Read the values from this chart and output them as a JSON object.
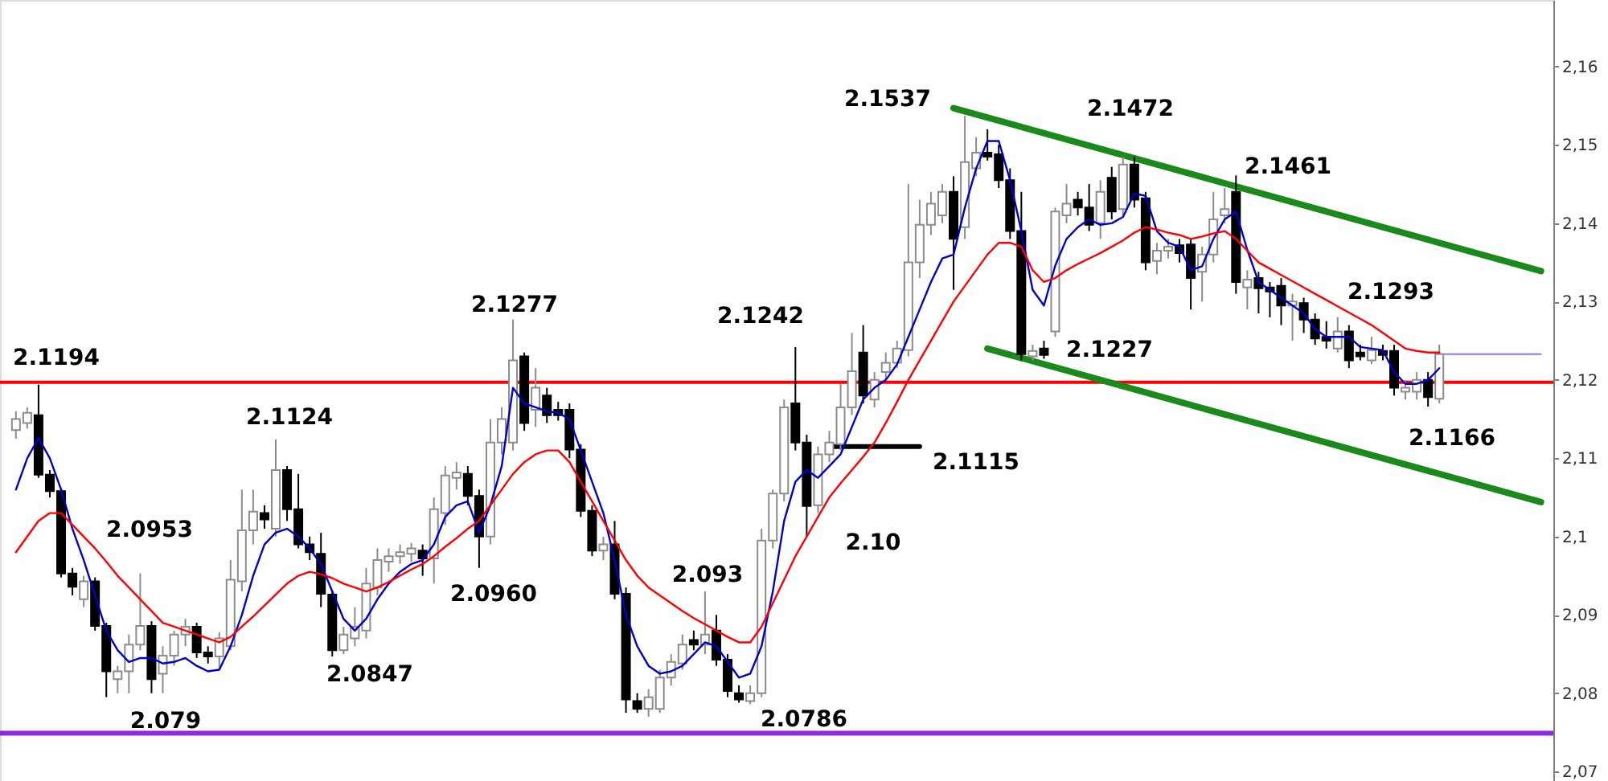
{
  "chart_data": {
    "type": "candlestick",
    "categories": [
      null,
      null,
      null,
      null,
      null,
      null,
      null,
      null,
      null,
      null,
      null,
      null,
      null,
      null,
      null,
      null,
      null,
      null,
      null,
      null,
      null,
      null,
      null,
      null,
      null,
      null,
      null,
      null,
      null,
      null,
      null,
      null,
      null,
      null,
      null,
      null,
      null,
      null,
      null,
      null,
      null,
      null,
      null,
      null,
      null,
      null,
      null,
      null,
      null,
      null,
      null,
      null,
      null,
      null,
      null,
      null,
      null,
      null,
      null,
      null,
      null,
      null,
      null,
      null,
      null,
      null,
      null,
      null,
      null,
      null,
      null,
      null,
      null,
      null,
      null,
      null,
      null,
      null,
      null,
      null,
      null,
      null,
      null,
      null,
      null,
      null,
      null,
      null,
      null,
      null,
      null,
      null,
      null,
      null,
      null,
      null,
      null,
      null,
      null,
      null,
      null,
      null,
      null,
      null,
      null,
      null,
      null,
      null,
      null,
      null,
      null,
      null,
      null,
      null,
      null,
      null,
      null,
      null,
      null,
      null,
      null,
      null,
      null,
      null,
      null,
      null,
      null,
      null,
      null,
      null,
      null,
      null,
      null,
      null,
      null,
      null
    ],
    "ohlc": [
      [
        2.1136,
        2.116,
        2.1125,
        2.115
      ],
      [
        2.1145,
        2.1165,
        2.1138,
        2.1158
      ],
      [
        2.1155,
        2.1194,
        2.1075,
        2.1079
      ],
      [
        2.1079,
        2.1085,
        2.105,
        2.1058
      ],
      [
        2.1058,
        2.1062,
        2.0948,
        2.0953
      ],
      [
        2.0953,
        2.096,
        2.0925,
        2.0936
      ],
      [
        2.092,
        2.095,
        2.091,
        2.0943
      ],
      [
        2.0943,
        2.0948,
        2.088,
        2.0886
      ],
      [
        2.0886,
        2.089,
        2.0795,
        2.0828
      ],
      [
        2.0818,
        2.0835,
        2.08,
        2.0828
      ],
      [
        2.0828,
        2.0875,
        2.08,
        2.0862
      ],
      [
        2.0862,
        2.0953,
        2.0855,
        2.0886
      ],
      [
        2.0886,
        2.0892,
        2.08,
        2.0818
      ],
      [
        2.0825,
        2.086,
        2.08,
        2.0848
      ],
      [
        2.0848,
        2.088,
        2.0835,
        2.0875
      ],
      [
        2.0875,
        2.0895,
        2.086,
        2.0885
      ],
      [
        2.0885,
        2.089,
        2.0845,
        2.0852
      ],
      [
        2.0852,
        2.086,
        2.0838,
        2.0847
      ],
      [
        2.0847,
        2.0878,
        2.083,
        2.087
      ],
      [
        2.086,
        2.097,
        2.0855,
        2.0945
      ],
      [
        2.0943,
        2.106,
        2.093,
        2.1008
      ],
      [
        2.1008,
        2.106,
        2.099,
        2.1032
      ],
      [
        2.103,
        2.104,
        2.101,
        2.1022
      ],
      [
        2.101,
        2.1124,
        2.1,
        2.1085
      ],
      [
        2.1085,
        2.109,
        2.102,
        2.1035
      ],
      [
        2.1035,
        2.108,
        2.0985,
        2.099
      ],
      [
        2.099,
        2.1,
        2.097,
        2.098
      ],
      [
        2.0978,
        2.1005,
        2.091,
        2.0927
      ],
      [
        2.0926,
        2.093,
        2.0847,
        2.0855
      ],
      [
        2.0855,
        2.0885,
        2.085,
        2.0875
      ],
      [
        2.087,
        2.091,
        2.086,
        2.0885
      ],
      [
        2.088,
        2.096,
        2.087,
        2.094
      ],
      [
        2.0935,
        2.0985,
        2.0925,
        2.097
      ],
      [
        2.0968,
        2.0985,
        2.0955,
        2.0975
      ],
      [
        2.0975,
        2.099,
        2.0965,
        2.098
      ],
      [
        2.0978,
        2.0992,
        2.0968,
        2.0985
      ],
      [
        2.0982,
        2.099,
        2.095,
        2.0972
      ],
      [
        2.0972,
        2.105,
        2.094,
        2.1035
      ],
      [
        2.103,
        2.109,
        2.1015,
        2.1078
      ],
      [
        2.1075,
        2.1095,
        2.106,
        2.1082
      ],
      [
        2.108,
        2.109,
        2.104,
        2.1052
      ],
      [
        2.1052,
        2.106,
        2.096,
        2.1
      ],
      [
        2.1,
        2.115,
        2.099,
        2.112
      ],
      [
        2.112,
        2.1165,
        2.1105,
        2.115
      ],
      [
        2.112,
        2.1277,
        2.111,
        2.1225
      ],
      [
        2.123,
        2.1235,
        2.1135,
        2.1145
      ],
      [
        2.1162,
        2.1215,
        2.114,
        2.119
      ],
      [
        2.118,
        2.119,
        2.1145,
        2.1155
      ],
      [
        2.1162,
        2.1172,
        2.1148,
        2.1155
      ],
      [
        2.1162,
        2.117,
        2.11,
        2.1111
      ],
      [
        2.1111,
        2.1118,
        2.1025,
        2.1033
      ],
      [
        2.1033,
        2.104,
        2.0975,
        2.0982
      ],
      [
        2.0982,
        2.1,
        2.097,
        2.099
      ],
      [
        2.099,
        2.102,
        2.092,
        2.0927
      ],
      [
        2.0927,
        2.0935,
        2.0775,
        2.0792
      ],
      [
        2.079,
        2.08,
        2.0775,
        2.078
      ],
      [
        2.078,
        2.0805,
        2.077,
        2.0795
      ],
      [
        2.078,
        2.083,
        2.0775,
        2.082
      ],
      [
        2.082,
        2.085,
        2.081,
        2.084
      ],
      [
        2.0838,
        2.0875,
        2.083,
        2.0862
      ],
      [
        2.0868,
        2.088,
        2.0855,
        2.0862
      ],
      [
        2.0862,
        2.093,
        2.085,
        2.0875
      ],
      [
        2.088,
        2.09,
        2.0835,
        2.0843
      ],
      [
        2.0843,
        2.085,
        2.0795,
        2.0803
      ],
      [
        2.08,
        2.081,
        2.0788,
        2.0792
      ],
      [
        2.079,
        2.081,
        2.0786,
        2.08
      ],
      [
        2.08,
        2.101,
        2.0795,
        2.0995
      ],
      [
        2.0995,
        2.106,
        2.0985,
        2.1055
      ],
      [
        2.1055,
        2.1175,
        2.1045,
        2.1165
      ],
      [
        2.117,
        2.1242,
        2.111,
        2.112
      ],
      [
        2.112,
        2.113,
        2.1,
        2.1039
      ],
      [
        2.104,
        2.1115,
        2.103,
        2.1105
      ],
      [
        2.1105,
        2.1135,
        2.1095,
        2.112
      ],
      [
        2.1118,
        2.1195,
        2.111,
        2.1165
      ],
      [
        2.1165,
        2.126,
        2.1155,
        2.1211
      ],
      [
        2.1235,
        2.127,
        2.117,
        2.118
      ],
      [
        2.1175,
        2.121,
        2.1165,
        2.12
      ],
      [
        2.121,
        2.1235,
        2.12,
        2.1222
      ],
      [
        2.1222,
        2.125,
        2.1215,
        2.124
      ],
      [
        2.1238,
        2.145,
        2.123,
        2.135
      ],
      [
        2.135,
        2.143,
        2.133,
        2.1398
      ],
      [
        2.1398,
        2.144,
        2.1385,
        2.1425
      ],
      [
        2.141,
        2.145,
        2.14,
        2.144
      ],
      [
        2.144,
        2.146,
        2.1315,
        2.138
      ],
      [
        2.1395,
        2.1537,
        2.138,
        2.1478
      ],
      [
        2.147,
        2.151,
        2.146,
        2.149
      ],
      [
        2.149,
        2.152,
        2.148,
        2.1485
      ],
      [
        2.1488,
        2.15,
        2.1445,
        2.1455
      ],
      [
        2.1455,
        2.147,
        2.138,
        2.139
      ],
      [
        2.139,
        2.144,
        2.1225,
        2.1233
      ],
      [
        2.123,
        2.1245,
        2.1225,
        2.1237
      ],
      [
        2.124,
        2.125,
        2.1227,
        2.1232
      ],
      [
        2.1262,
        2.142,
        2.1255,
        2.1415
      ],
      [
        2.141,
        2.145,
        2.14,
        2.1425
      ],
      [
        2.143,
        2.144,
        2.141,
        2.142
      ],
      [
        2.142,
        2.145,
        2.139,
        2.1398
      ],
      [
        2.14,
        2.1455,
        2.138,
        2.144
      ],
      [
        2.1458,
        2.1472,
        2.1405,
        2.1415
      ],
      [
        2.1418,
        2.1485,
        2.141,
        2.1475
      ],
      [
        2.1475,
        2.1485,
        2.142,
        2.143
      ],
      [
        2.1432,
        2.144,
        2.134,
        2.135
      ],
      [
        2.1352,
        2.1375,
        2.1335,
        2.1365
      ],
      [
        2.1365,
        2.138,
        2.1355,
        2.137
      ],
      [
        2.1372,
        2.138,
        2.135,
        2.1362
      ],
      [
        2.1373,
        2.138,
        2.129,
        2.133
      ],
      [
        2.1338,
        2.137,
        2.13,
        2.136
      ],
      [
        2.136,
        2.144,
        2.135,
        2.1405
      ],
      [
        2.141,
        2.1445,
        2.14,
        2.1418
      ],
      [
        2.144,
        2.1461,
        2.131,
        2.1325
      ],
      [
        2.1318,
        2.134,
        2.129,
        2.1328
      ],
      [
        2.133,
        2.1338,
        2.1285,
        2.1317
      ],
      [
        2.1318,
        2.1325,
        2.128,
        2.1313
      ],
      [
        2.132,
        2.133,
        2.127,
        2.1295
      ],
      [
        2.1295,
        2.131,
        2.125,
        2.13
      ],
      [
        2.1298,
        2.1305,
        2.126,
        2.1277
      ],
      [
        2.1277,
        2.1285,
        2.1245,
        2.1253
      ],
      [
        2.1255,
        2.1275,
        2.124,
        2.125
      ],
      [
        2.124,
        2.128,
        2.1235,
        2.1262
      ],
      [
        2.1262,
        2.127,
        2.1215,
        2.1225
      ],
      [
        2.1235,
        2.1245,
        2.1225,
        2.123
      ],
      [
        2.1225,
        2.1255,
        2.122,
        2.1238
      ],
      [
        2.1237,
        2.1245,
        2.1225,
        2.1232
      ],
      [
        2.1237,
        2.1245,
        2.118,
        2.119
      ],
      [
        2.1185,
        2.12,
        2.1175,
        2.119
      ],
      [
        2.1185,
        2.121,
        2.1175,
        2.12
      ],
      [
        2.12,
        2.121,
        2.1166,
        2.1178
      ],
      [
        2.1176,
        2.1245,
        2.117,
        2.1233
      ],
      null,
      null,
      null,
      null,
      null,
      null,
      null,
      null,
      null
    ],
    "series": [
      {
        "type": "line",
        "color": "#0000cc",
        "values": [
          2.106,
          2.11,
          2.1126,
          2.11,
          2.106,
          2.101,
          2.097,
          2.0925,
          2.088,
          2.0855,
          2.084,
          2.0845,
          2.0845,
          2.0838,
          2.084,
          2.0845,
          2.0835,
          2.0828,
          2.083,
          2.086,
          2.09,
          2.095,
          2.099,
          2.1005,
          2.101,
          2.1,
          2.0985,
          2.0965,
          2.093,
          2.0895,
          2.088,
          2.0895,
          2.092,
          2.094,
          2.0955,
          2.0965,
          2.097,
          2.099,
          2.1025,
          2.104,
          2.1045,
          2.1005,
          2.104,
          2.109,
          2.119,
          2.117,
          2.1165,
          2.116,
          2.1158,
          2.115,
          2.111,
          2.107,
          2.103,
          2.097,
          2.09,
          2.086,
          2.0835,
          2.0825,
          2.0828,
          2.0835,
          2.085,
          2.0865,
          2.086,
          2.084,
          2.082,
          2.0825,
          2.086,
          2.093,
          2.102,
          2.107,
          2.1085,
          2.1075,
          2.109,
          2.1105,
          2.114,
          2.1175,
          2.119,
          2.12,
          2.122,
          2.1255,
          2.129,
          2.1325,
          2.1355,
          2.136,
          2.142,
          2.147,
          2.1505,
          2.1505,
          2.1455,
          2.139,
          2.1315,
          2.1295,
          2.1346,
          2.138,
          2.1395,
          2.1405,
          2.1398,
          2.14,
          2.1408,
          2.1438,
          2.1435,
          2.139,
          2.1375,
          2.137,
          2.134,
          2.1345,
          2.138,
          2.1405,
          2.1415,
          2.1366,
          2.1325,
          2.1315,
          2.1305,
          2.1295,
          2.1285,
          2.1265,
          2.1255,
          2.1255,
          2.1255,
          2.1242,
          2.124,
          2.1238,
          2.121,
          2.1195,
          2.1195,
          2.12,
          2.1215,
          null,
          null,
          null,
          null,
          null,
          null,
          null,
          null,
          null
        ]
      },
      {
        "type": "line",
        "color": "#ff0000",
        "values": [
          2.098,
          2.1,
          2.102,
          2.103,
          2.103,
          2.1015,
          2.1,
          2.0985,
          2.0968,
          2.095,
          2.0935,
          2.092,
          2.0905,
          2.089,
          2.0885,
          2.088,
          2.0875,
          2.087,
          2.0865,
          2.0872,
          2.0885,
          2.0898,
          2.0912,
          2.0926,
          2.094,
          2.095,
          2.0955,
          2.0952,
          2.0947,
          2.094,
          2.0935,
          2.093,
          2.0935,
          2.0942,
          2.095,
          2.0958,
          2.0965,
          2.0975,
          2.0987,
          2.0998,
          2.101,
          2.102,
          2.104,
          2.106,
          2.108,
          2.1095,
          2.1105,
          2.111,
          2.111,
          2.1095,
          2.107,
          2.1045,
          2.102,
          2.0995,
          2.097,
          2.095,
          2.0935,
          2.0925,
          2.0915,
          2.0905,
          2.0896,
          2.0888,
          2.088,
          2.0872,
          2.0865,
          2.0865,
          2.0885,
          2.0915,
          2.0945,
          2.0975,
          2.1,
          2.1025,
          2.105,
          2.1068,
          2.1085,
          2.1102,
          2.112,
          2.1145,
          2.1172,
          2.12,
          2.1225,
          2.125,
          2.1275,
          2.13,
          2.132,
          2.134,
          2.136,
          2.1375,
          2.1375,
          2.137,
          2.134,
          2.1325,
          2.133,
          2.134,
          2.1348,
          2.1355,
          2.1362,
          2.137,
          2.1378,
          2.1388,
          2.1395,
          2.1392,
          2.1388,
          2.1385,
          2.138,
          2.1383,
          2.1387,
          2.139,
          2.138,
          2.1365,
          2.135,
          2.1342,
          2.1334,
          2.1326,
          2.1318,
          2.131,
          2.1302,
          2.1294,
          2.1286,
          2.1278,
          2.127,
          2.126,
          2.125,
          2.124,
          2.1237,
          2.1235,
          2.1235,
          null,
          null,
          null,
          null,
          null,
          null,
          null,
          null,
          null
        ]
      },
      {
        "type": "line",
        "color": "#1a8a1a",
        "values": [
          null,
          null,
          null,
          null,
          null,
          null,
          null,
          null,
          null,
          null,
          null,
          null,
          null,
          null,
          null,
          null,
          null,
          null,
          null,
          null,
          null,
          null,
          null,
          null,
          null,
          null,
          null,
          null,
          null,
          null,
          null,
          null,
          null,
          null,
          null,
          null,
          null,
          null,
          null,
          null,
          null,
          null,
          null,
          null,
          null,
          null,
          null,
          null,
          null,
          null,
          null,
          null,
          null,
          null,
          null,
          null,
          null,
          null,
          null,
          null,
          null,
          null,
          null,
          null,
          null,
          null,
          null,
          null,
          null,
          null,
          null,
          null,
          null,
          null,
          null,
          null,
          null,
          null,
          null,
          null,
          null,
          null,
          null,
          2.1547,
          null,
          null,
          null,
          null,
          null,
          null,
          null,
          null,
          null,
          null,
          null,
          null,
          null,
          null,
          null,
          null,
          null,
          null,
          null,
          null,
          null,
          null,
          null,
          null,
          null,
          null,
          null,
          null,
          null,
          null,
          null,
          null,
          null,
          null,
          null,
          null,
          null,
          null,
          null,
          null,
          null,
          null,
          null,
          null,
          null,
          null,
          null,
          null,
          null,
          null,
          null,
          2.1339
        ]
      },
      {
        "type": "line",
        "color": "#1a8a1a",
        "values": [
          null,
          null,
          null,
          null,
          null,
          null,
          null,
          null,
          null,
          null,
          null,
          null,
          null,
          null,
          null,
          null,
          null,
          null,
          null,
          null,
          null,
          null,
          null,
          null,
          null,
          null,
          null,
          null,
          null,
          null,
          null,
          null,
          null,
          null,
          null,
          null,
          null,
          null,
          null,
          null,
          null,
          null,
          null,
          null,
          null,
          null,
          null,
          null,
          null,
          null,
          null,
          null,
          null,
          null,
          null,
          null,
          null,
          null,
          null,
          null,
          null,
          null,
          null,
          null,
          null,
          null,
          null,
          null,
          null,
          null,
          null,
          null,
          null,
          null,
          null,
          null,
          null,
          null,
          null,
          null,
          null,
          null,
          null,
          null,
          null,
          null,
          2.124,
          null,
          null,
          null,
          null,
          null,
          null,
          null,
          null,
          null,
          null,
          null,
          null,
          null,
          null,
          null,
          null,
          null,
          null,
          null,
          null,
          null,
          null,
          null,
          null,
          null,
          null,
          null,
          null,
          null,
          null,
          null,
          null,
          null,
          null,
          null,
          null,
          null,
          null,
          null,
          null,
          null,
          null,
          null,
          null,
          null,
          null,
          null,
          null,
          2.1044
        ]
      },
      {
        "type": "line",
        "color": "#000000",
        "values": [
          null,
          null,
          null,
          null,
          null,
          null,
          null,
          null,
          null,
          null,
          null,
          null,
          null,
          null,
          null,
          null,
          null,
          null,
          null,
          null,
          null,
          null,
          null,
          null,
          null,
          null,
          null,
          null,
          null,
          null,
          null,
          null,
          null,
          null,
          null,
          null,
          null,
          null,
          null,
          null,
          null,
          null,
          null,
          null,
          null,
          null,
          null,
          null,
          null,
          null,
          null,
          null,
          null,
          null,
          null,
          null,
          null,
          null,
          null,
          null,
          null,
          null,
          null,
          null,
          null,
          null,
          null,
          null,
          null,
          null,
          null,
          null,
          2.1115,
          null,
          null,
          null,
          null,
          null,
          null,
          null,
          2.1115,
          null,
          null,
          null,
          null,
          null,
          null,
          null,
          null,
          null,
          null,
          null,
          null,
          null,
          null,
          null,
          null,
          null,
          null,
          null,
          null,
          null,
          null,
          null,
          null,
          null,
          null,
          null,
          null,
          null,
          null,
          null,
          null,
          null,
          null,
          null,
          null,
          null,
          null,
          null,
          null,
          null,
          null,
          null,
          null,
          null,
          null,
          null,
          null,
          null,
          null,
          null,
          null,
          null,
          null,
          null
        ]
      },
      {
        "type": "line",
        "color": "#7a7aff",
        "values": [
          null,
          null,
          null,
          null,
          null,
          null,
          null,
          null,
          null,
          null,
          null,
          null,
          null,
          null,
          null,
          null,
          null,
          null,
          null,
          null,
          null,
          null,
          null,
          null,
          null,
          null,
          null,
          null,
          null,
          null,
          null,
          null,
          null,
          null,
          null,
          null,
          null,
          null,
          null,
          null,
          null,
          null,
          null,
          null,
          null,
          null,
          null,
          null,
          null,
          null,
          null,
          null,
          null,
          null,
          null,
          null,
          null,
          null,
          null,
          null,
          null,
          null,
          null,
          null,
          null,
          null,
          null,
          null,
          null,
          null,
          null,
          null,
          null,
          null,
          null,
          null,
          null,
          null,
          null,
          null,
          null,
          null,
          null,
          null,
          null,
          null,
          null,
          null,
          null,
          null,
          null,
          null,
          null,
          null,
          null,
          null,
          null,
          null,
          null,
          null,
          null,
          null,
          null,
          null,
          null,
          null,
          null,
          null,
          null,
          null,
          null,
          null,
          null,
          null,
          null,
          null,
          null,
          null,
          null,
          null,
          null,
          null,
          null,
          null,
          null,
          null,
          2.1233,
          null,
          null,
          null,
          null,
          null,
          null,
          null,
          null,
          2.1233
        ]
      }
    ],
    "ref_lines": [
      {
        "axis": "y",
        "value": 2.1197,
        "color": "#ff0000"
      },
      {
        "axis": "y",
        "value": 2.0749,
        "color": "#8a2be2"
      }
    ],
    "annotations": [
      "2.1194",
      "2.0953",
      "2.079",
      "2.1124",
      "2.0847",
      "2.0960",
      "2.1277",
      "2.093",
      "2.0786",
      "2.1242",
      "2.10",
      "2.1115",
      "2.1537",
      "2.1227",
      "2.1472",
      "2.1461",
      "2.1293",
      "2.1166"
    ],
    "ylim": [
      2.0688,
      2.1685
    ],
    "yticks": [
      {
        "value": 2.07,
        "label": "2,07"
      },
      {
        "value": 2.08,
        "label": "2,08"
      },
      {
        "value": 2.09,
        "label": "2,09"
      },
      {
        "value": 2.1,
        "label": "2,1"
      },
      {
        "value": 2.11,
        "label": "2,11"
      },
      {
        "value": 2.12,
        "label": "2,12"
      },
      {
        "value": 2.13,
        "label": "2,13"
      },
      {
        "value": 2.14,
        "label": "2,14"
      },
      {
        "value": 2.15,
        "label": "2,15"
      },
      {
        "value": 2.16,
        "label": "2,16"
      }
    ],
    "tick_labels": "y"
  }
}
